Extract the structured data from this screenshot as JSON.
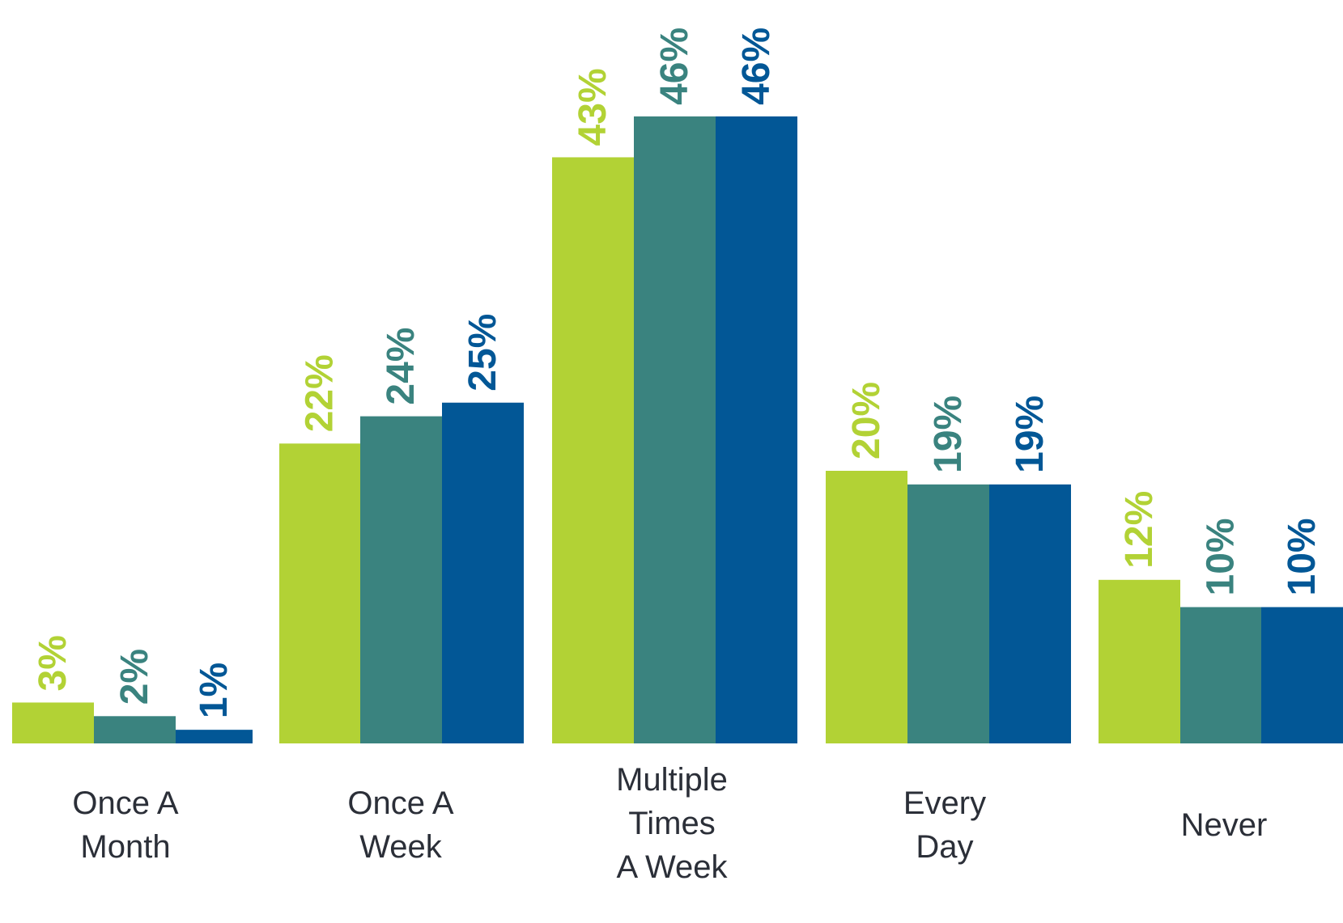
{
  "chart_data": {
    "type": "bar",
    "title": "",
    "xlabel": "",
    "ylabel": "",
    "ylim": [
      0,
      46
    ],
    "grid": false,
    "categories": [
      [
        "Once A",
        "Month"
      ],
      [
        "Once A",
        "Week"
      ],
      [
        "Multiple",
        "Times",
        "A Week"
      ],
      [
        "Every",
        "Day"
      ],
      [
        "Never"
      ]
    ],
    "series": [
      {
        "color": "#b2d235",
        "values": [
          3,
          22,
          43,
          20,
          12
        ],
        "labels": [
          "3%",
          "22%",
          "43%",
          "20%",
          "12%"
        ]
      },
      {
        "color": "#3a837f",
        "values": [
          2,
          24,
          46,
          19,
          10
        ],
        "labels": [
          "2%",
          "24%",
          "46%",
          "19%",
          "10%"
        ]
      },
      {
        "color": "#025796",
        "values": [
          1,
          25,
          46,
          19,
          10
        ],
        "labels": [
          "1%",
          "25%",
          "46%",
          "19%",
          "10%"
        ]
      }
    ]
  }
}
